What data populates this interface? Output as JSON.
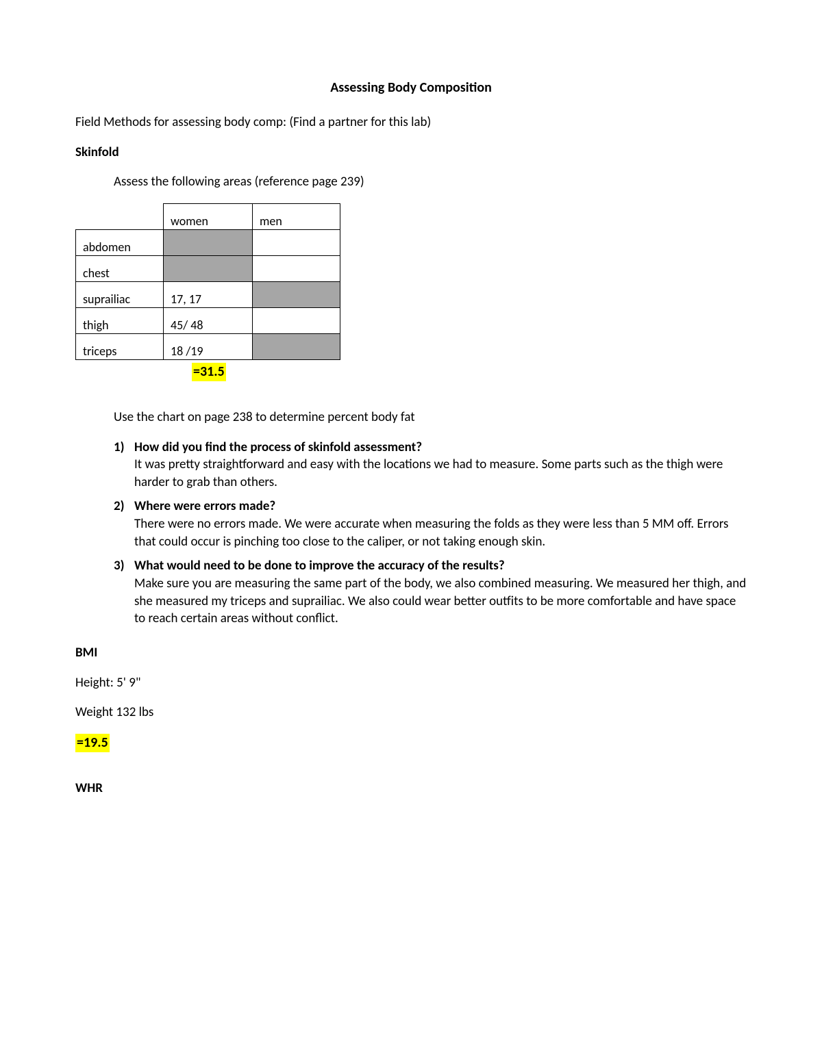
{
  "title": "Assessing Body Composition",
  "intro": "Field Methods for assessing body comp: (Find a partner for this lab)",
  "skinfold": {
    "heading": "Skinfold",
    "assess_line": "Assess the following areas (reference page 239)",
    "columns": [
      "",
      "women",
      "men"
    ],
    "rows": [
      {
        "label": "abdomen",
        "women": "",
        "men": "",
        "women_shaded": true,
        "men_shaded": false
      },
      {
        "label": "chest",
        "women": "",
        "men": "",
        "women_shaded": true,
        "men_shaded": false
      },
      {
        "label": "suprailiac",
        "women": "17, 17",
        "men": "",
        "women_shaded": false,
        "men_shaded": true
      },
      {
        "label": "thigh",
        "women": "45/  48",
        "men": "",
        "women_shaded": false,
        "men_shaded": false
      },
      {
        "label": "triceps",
        "women": "18 /19",
        "men": "",
        "women_shaded": false,
        "men_shaded": true
      }
    ],
    "result": "=31.5",
    "chart_line": "Use the chart on page 238 to determine percent body fat"
  },
  "questions": [
    {
      "num": "1)",
      "q": "How did you find the process of skinfold assessment?",
      "a": "It was pretty straightforward and easy with the locations we had to measure. Some parts such as the thigh were harder to grab than others."
    },
    {
      "num": "2)",
      "q": "Where were errors made?",
      "a": "There were no errors made. We were accurate when measuring the folds as they were less than 5 MM off. Errors that could occur is pinching too close to the caliper, or not taking enough skin."
    },
    {
      "num": "3)",
      "q": "What would need to be done to improve the accuracy of the results?",
      "a": "Make sure you are measuring the same part of the body, we also combined measuring. We measured her thigh, and she measured my triceps and suprailiac. We also could wear better outfits to be more comfortable and have space to reach certain areas without conflict."
    }
  ],
  "bmi": {
    "heading": "BMI",
    "height": "Height: 5' 9\"",
    "weight": "Weight  132 lbs",
    "result": "=19.5"
  },
  "whr": {
    "heading": "WHR"
  },
  "colors": {
    "highlight": "#ffff00",
    "table_shade": "#a6a6a6",
    "text": "#000000",
    "background": "#ffffff"
  }
}
